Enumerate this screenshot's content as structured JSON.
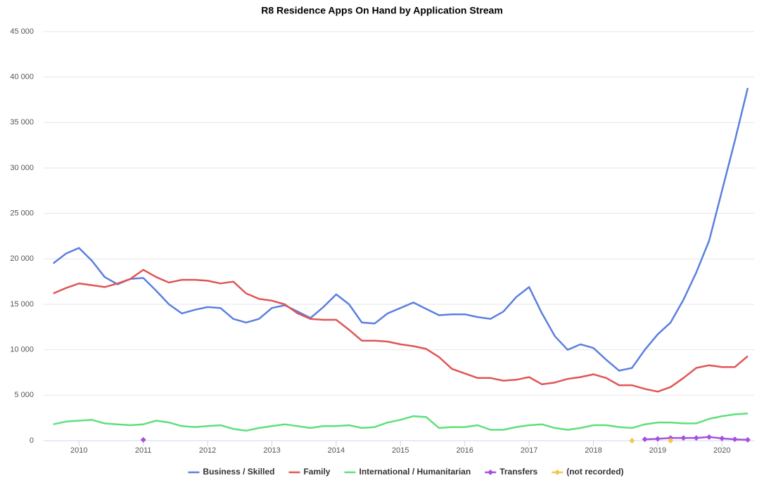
{
  "chart_data": {
    "type": "line",
    "title": "R8 Residence Apps On Hand by Application Stream",
    "x": [
      2009.6,
      2009.8,
      2010.0,
      2010.2,
      2010.4,
      2010.6,
      2010.8,
      2011.0,
      2011.2,
      2011.4,
      2011.6,
      2011.8,
      2012.0,
      2012.2,
      2012.4,
      2012.6,
      2012.8,
      2013.0,
      2013.2,
      2013.4,
      2013.6,
      2013.8,
      2014.0,
      2014.2,
      2014.4,
      2014.6,
      2014.8,
      2015.0,
      2015.2,
      2015.4,
      2015.6,
      2015.8,
      2016.0,
      2016.2,
      2016.4,
      2016.6,
      2016.8,
      2017.0,
      2017.2,
      2017.4,
      2017.6,
      2017.8,
      2018.0,
      2018.2,
      2018.4,
      2018.6,
      2018.8,
      2019.0,
      2019.2,
      2019.4,
      2019.6,
      2019.8,
      2020.0,
      2020.2,
      2020.4
    ],
    "series": [
      {
        "name": "Business / Skilled",
        "color": "#5b7fe0",
        "markers": false,
        "values": [
          19500,
          20600,
          21200,
          19800,
          18000,
          17200,
          17800,
          17900,
          16500,
          15000,
          14000,
          14400,
          14700,
          14600,
          13400,
          13000,
          13400,
          14600,
          14900,
          14200,
          13500,
          14700,
          16100,
          15000,
          13000,
          12900,
          14000,
          14600,
          15200,
          14500,
          13800,
          13900,
          13900,
          13600,
          13400,
          14200,
          15800,
          16900,
          14000,
          11500,
          10000,
          10600,
          10200,
          8900,
          7700,
          8000,
          10000,
          11700,
          13000,
          15500,
          18500,
          22000,
          27500,
          33000,
          38800
        ]
      },
      {
        "name": "Family",
        "color": "#e05555",
        "markers": false,
        "values": [
          16200,
          16800,
          17300,
          17100,
          16900,
          17300,
          17800,
          18800,
          18000,
          17400,
          17700,
          17700,
          17600,
          17300,
          17500,
          16200,
          15600,
          15400,
          15000,
          14000,
          13400,
          13300,
          13300,
          12200,
          11000,
          11000,
          10900,
          10600,
          10400,
          10100,
          9200,
          7900,
          7400,
          6900,
          6900,
          6600,
          6700,
          7000,
          6200,
          6400,
          6800,
          7000,
          7300,
          6900,
          6100,
          6100,
          5700,
          5400,
          5900,
          6900,
          8000,
          8300,
          8100,
          8100,
          9300
        ]
      },
      {
        "name": "International / Humanitarian",
        "color": "#5ee07a",
        "markers": false,
        "values": [
          1800,
          2100,
          2200,
          2300,
          1900,
          1800,
          1700,
          1800,
          2200,
          2000,
          1600,
          1500,
          1600,
          1700,
          1300,
          1100,
          1400,
          1600,
          1800,
          1600,
          1400,
          1600,
          1600,
          1700,
          1400,
          1500,
          2000,
          2300,
          2700,
          2600,
          1400,
          1500,
          1500,
          1700,
          1200,
          1200,
          1500,
          1700,
          1800,
          1400,
          1200,
          1400,
          1700,
          1700,
          1500,
          1400,
          1800,
          2000,
          2000,
          1900,
          1900,
          2400,
          2700,
          2900,
          3000
        ]
      },
      {
        "name": "Transfers",
        "color": "#a64fe0",
        "markers": true,
        "values": [
          null,
          null,
          null,
          null,
          null,
          null,
          null,
          100,
          null,
          null,
          null,
          null,
          null,
          null,
          null,
          null,
          null,
          null,
          null,
          null,
          null,
          null,
          null,
          null,
          null,
          null,
          null,
          null,
          null,
          null,
          null,
          null,
          null,
          null,
          null,
          null,
          null,
          null,
          null,
          null,
          null,
          null,
          null,
          null,
          null,
          null,
          150,
          200,
          300,
          300,
          300,
          400,
          250,
          150,
          100
        ]
      },
      {
        "name": "(not recorded)",
        "color": "#f0c94a",
        "markers": true,
        "values": [
          null,
          null,
          null,
          null,
          null,
          null,
          null,
          null,
          null,
          null,
          null,
          null,
          null,
          null,
          null,
          null,
          null,
          null,
          null,
          null,
          null,
          null,
          null,
          null,
          null,
          null,
          null,
          null,
          null,
          null,
          null,
          null,
          null,
          null,
          null,
          null,
          null,
          null,
          null,
          null,
          null,
          null,
          null,
          null,
          null,
          0,
          null,
          null,
          0,
          null,
          null,
          null,
          null,
          null,
          null
        ]
      }
    ],
    "xlim": [
      2009.45,
      2020.5
    ],
    "xticks": [
      2010,
      2011,
      2012,
      2013,
      2014,
      2015,
      2016,
      2017,
      2018,
      2019,
      2020
    ],
    "ylim": [
      0,
      45000
    ],
    "yticks": [
      0,
      {
        "value": 5000,
        "label": "5 000"
      },
      {
        "value": 10000,
        "label": "10 000"
      },
      {
        "value": 15000,
        "label": "15 000"
      },
      {
        "value": 20000,
        "label": "20 000"
      },
      {
        "value": 25000,
        "label": "25 000"
      },
      {
        "value": 30000,
        "label": "30 000"
      },
      {
        "value": 35000,
        "label": "35 000"
      },
      {
        "value": 40000,
        "label": "40 000"
      },
      {
        "value": 45000,
        "label": "45 000"
      }
    ],
    "grid": true,
    "legend": "bottom"
  }
}
